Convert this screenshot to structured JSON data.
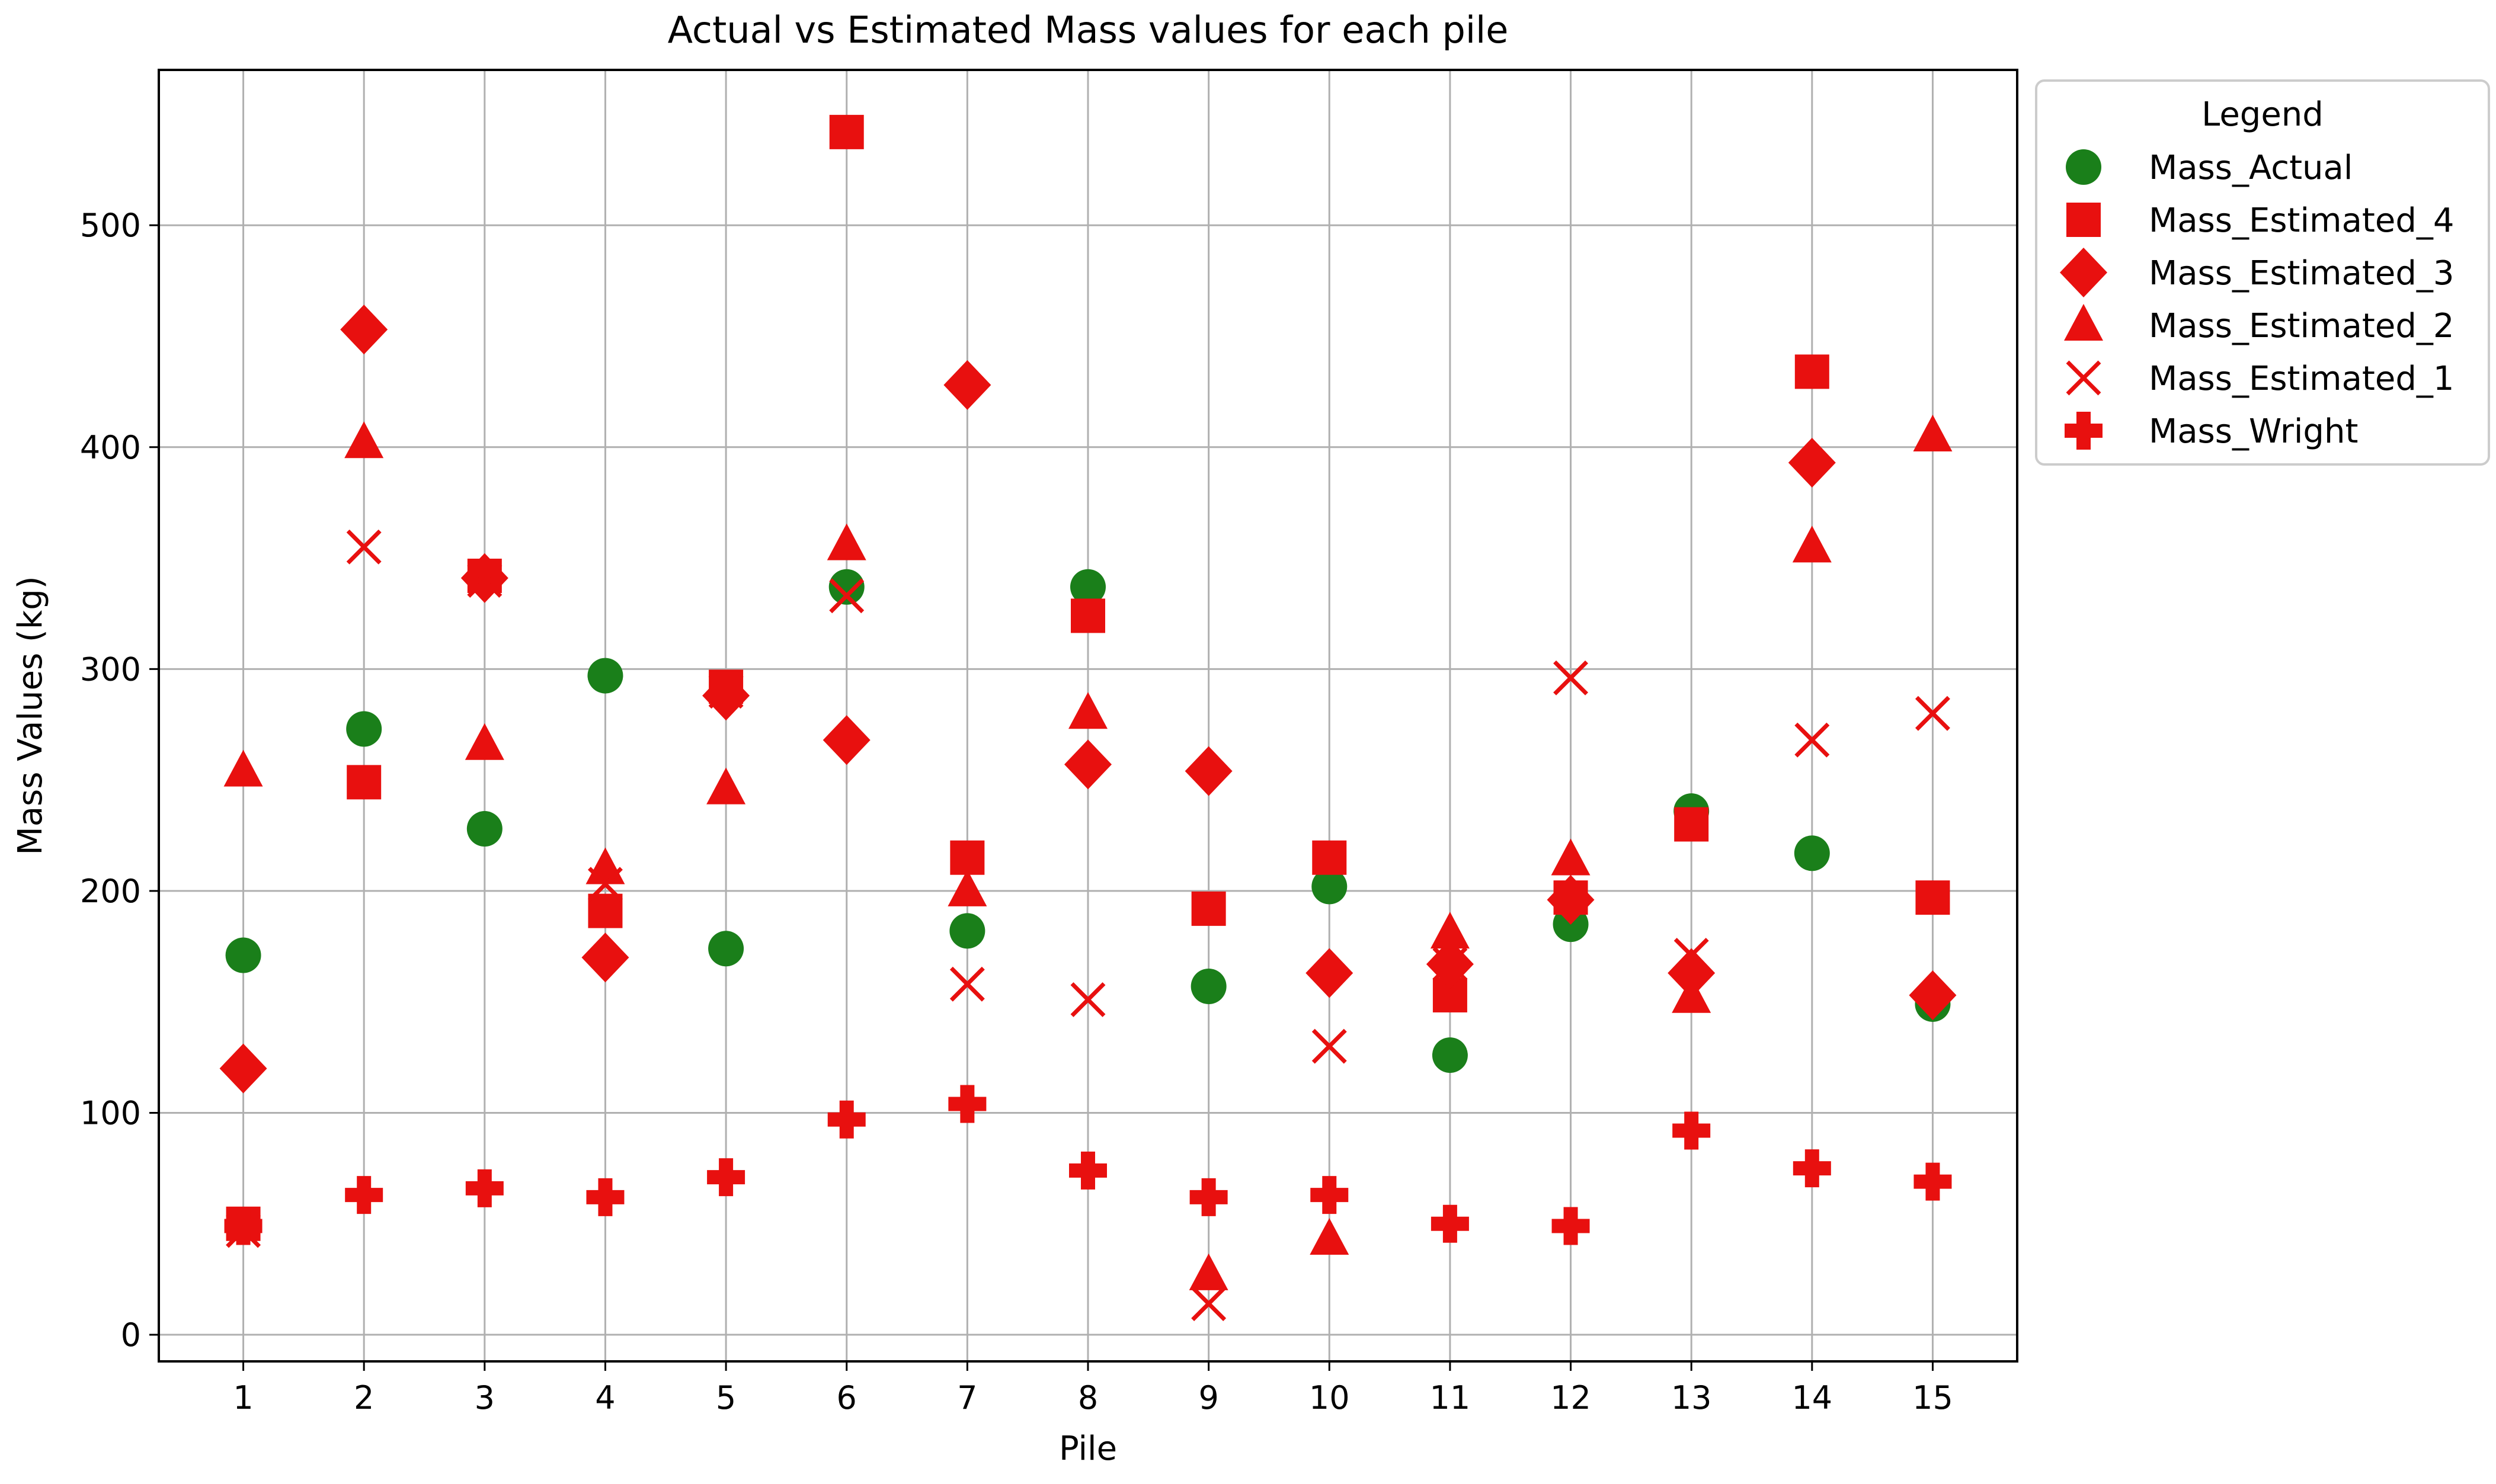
{
  "chart_data": {
    "type": "scatter",
    "title": "Actual vs Estimated Mass values for each pile",
    "xlabel": "Pile",
    "ylabel": "Mass Values (kg)",
    "x": [
      1,
      2,
      3,
      4,
      5,
      6,
      7,
      8,
      9,
      10,
      11,
      12,
      13,
      14,
      15
    ],
    "xticks": [
      "1",
      "2",
      "3",
      "4",
      "5",
      "6",
      "7",
      "8",
      "9",
      "10",
      "11",
      "12",
      "13",
      "14",
      "15"
    ],
    "yticks": [
      "0",
      "100",
      "200",
      "300",
      "400",
      "500"
    ],
    "xlim": [
      0.3,
      15.7
    ],
    "ylim": [
      -12,
      570
    ],
    "grid": true,
    "legend": {
      "title": "Legend",
      "placement": "upper-right-outside"
    },
    "series": [
      {
        "name": "Mass_Actual",
        "marker": "circle",
        "color": "#1a7f1a",
        "values": [
          171,
          273,
          228,
          297,
          174,
          337,
          182,
          337,
          157,
          202,
          126,
          185,
          236,
          217,
          149
        ]
      },
      {
        "name": "Mass_Estimated_4",
        "marker": "square",
        "color": "#e8100f",
        "values": [
          50,
          249,
          342,
          191,
          292,
          542,
          215,
          324,
          192,
          215,
          153,
          197,
          230,
          434,
          197
        ]
      },
      {
        "name": "Mass_Estimated_3",
        "marker": "diamond",
        "color": "#e8100f",
        "values": [
          120,
          453,
          341,
          170,
          288,
          268,
          428,
          257,
          254,
          163,
          167,
          196,
          163,
          393,
          153
        ]
      },
      {
        "name": "Mass_Estimated_2",
        "marker": "triangle",
        "color": "#e8100f",
        "values": [
          254,
          402,
          266,
          210,
          246,
          356,
          200,
          280,
          27,
          43,
          181,
          214,
          152,
          355,
          405
        ]
      },
      {
        "name": "Mass_Estimated_1",
        "marker": "x",
        "color": "#e8100f",
        "values": [
          47,
          355,
          340,
          203,
          290,
          333,
          158,
          151,
          14,
          130,
          167,
          296,
          171,
          268,
          280
        ]
      },
      {
        "name": "Mass_Wright",
        "marker": "plus",
        "color": "#e8100f",
        "values": [
          49,
          63,
          66,
          62,
          71,
          97,
          104,
          74,
          62,
          63,
          50,
          49,
          92,
          75,
          69
        ]
      }
    ]
  }
}
